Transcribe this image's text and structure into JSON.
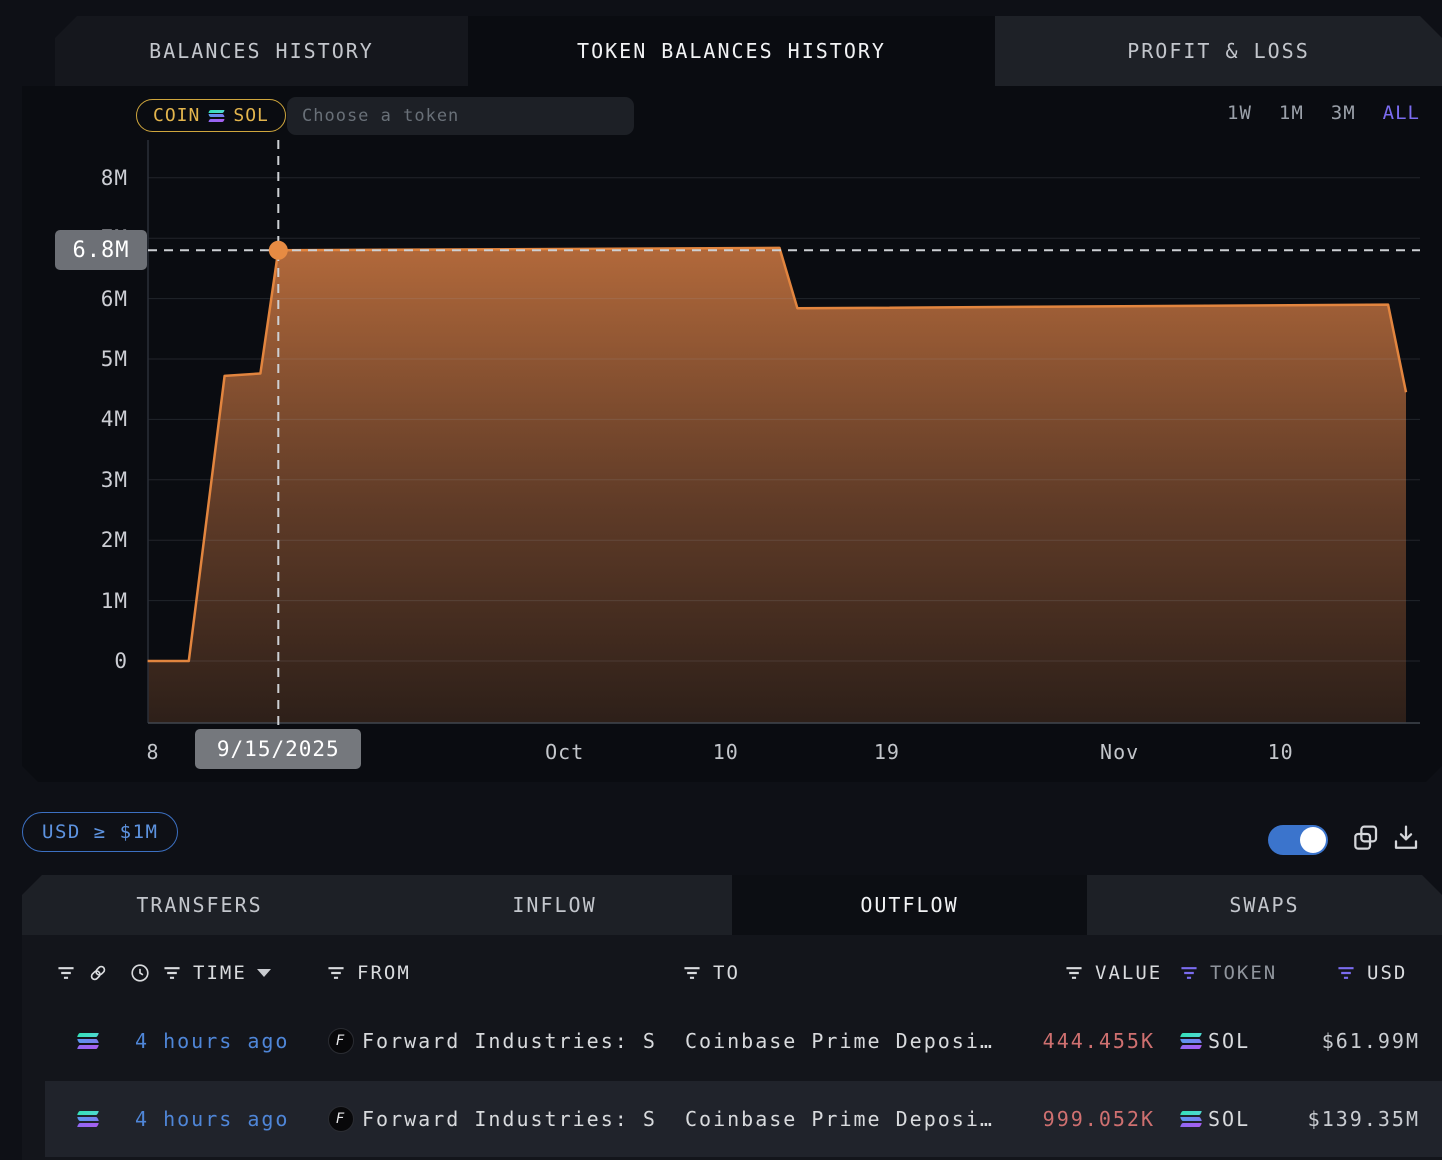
{
  "top_tabs": {
    "items": [
      {
        "label": "BALANCES HISTORY",
        "active": false
      },
      {
        "label": "TOKEN BALANCES HISTORY",
        "active": true
      },
      {
        "label": "PROFIT & LOSS",
        "active": false
      }
    ]
  },
  "chart_header": {
    "coin_chip_label": "COIN",
    "coin_chip_token": "SOL",
    "token_input_placeholder": "Choose a token",
    "ranges": [
      {
        "label": "1W",
        "active": false
      },
      {
        "label": "1M",
        "active": false
      },
      {
        "label": "3M",
        "active": false
      },
      {
        "label": "ALL",
        "active": true
      }
    ]
  },
  "chart_data": {
    "type": "area",
    "title": "Token balances history — SOL",
    "unit": "SOL (millions)",
    "legend_position": "none",
    "grid": true,
    "y_axis": {
      "ticks_millions": [
        0,
        1,
        2,
        3,
        4,
        5,
        6,
        7,
        8
      ],
      "suffix": "M",
      "ylim_millions": [
        0,
        8.65
      ]
    },
    "x_axis": {
      "note": "day = days since 2025-09-01",
      "ticks": [
        {
          "label": "8",
          "day": 7
        },
        {
          "label": "Oct",
          "day": 30
        },
        {
          "label": "10",
          "day": 39
        },
        {
          "label": "19",
          "day": 48
        },
        {
          "label": "Nov",
          "day": 61
        },
        {
          "label": "10",
          "day": 70
        }
      ]
    },
    "points": [
      {
        "date": "2025-09-07",
        "day": 6.7,
        "value_m": 0
      },
      {
        "date": "2025-09-10",
        "day": 9,
        "value_m": 0
      },
      {
        "date": "2025-09-12",
        "day": 11,
        "value_m": 4.72
      },
      {
        "date": "2025-09-14",
        "day": 13,
        "value_m": 4.76
      },
      {
        "date": "2025-09-15",
        "day": 14,
        "value_m": 6.8
      },
      {
        "date": "2025-10-13",
        "day": 42,
        "value_m": 6.84
      },
      {
        "date": "2025-10-14",
        "day": 43,
        "value_m": 5.84
      },
      {
        "date": "2025-11-16",
        "day": 76,
        "value_m": 5.9
      },
      {
        "date": "2025-11-17",
        "day": 77,
        "value_m": 4.45
      }
    ],
    "crosshair": {
      "day": 14,
      "value_m": 6.8,
      "y_label": "6.8M",
      "x_label": "9/15/2025"
    }
  },
  "filter_bar": {
    "usd_filter_label": "USD ≥ $1M",
    "toggle_on": true
  },
  "table": {
    "tabs": [
      {
        "label": "TRANSFERS",
        "active": false
      },
      {
        "label": "INFLOW",
        "active": false
      },
      {
        "label": "OUTFLOW",
        "active": true
      },
      {
        "label": "SWAPS",
        "active": false
      }
    ],
    "columns": {
      "time": "TIME",
      "from": "FROM",
      "to": "TO",
      "value": "VALUE",
      "token": "TOKEN",
      "usd": "USD"
    },
    "rows": [
      {
        "chain": "solana",
        "time": "4 hours ago",
        "from": "Forward Industries: S",
        "to": "Coinbase Prime Deposi…",
        "value": "444.455K",
        "token": "SOL",
        "usd": "$61.99M"
      },
      {
        "chain": "solana",
        "time": "4 hours ago",
        "from": "Forward Industries: S",
        "to": "Coinbase Prime Deposi…",
        "value": "999.052K",
        "token": "SOL",
        "usd": "$139.35M"
      }
    ]
  },
  "colors": {
    "accent_purple": "#7b6cf0",
    "gold": "#e3b54d",
    "link_blue": "#4f86d8",
    "value_red": "#cf7070",
    "toggle_blue": "#3b74cc",
    "line_orange": "#e2853f",
    "tooltip_gray": "#6d7076"
  }
}
